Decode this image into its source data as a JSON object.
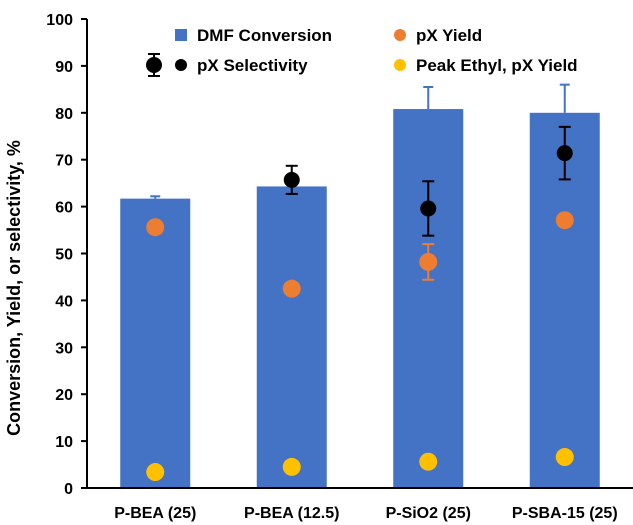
{
  "chart_data": {
    "type": "bar",
    "title": "",
    "xlabel": "",
    "ylabel": "Conversion, Yield, or selectivity, %",
    "ylim": [
      0,
      100
    ],
    "yticks": [
      0,
      10,
      20,
      30,
      40,
      50,
      60,
      70,
      80,
      90,
      100
    ],
    "grid": false,
    "legend_position": "top",
    "categories": [
      "P-BEA (25)",
      "P-BEA (12.5)",
      "P-SiO2 (25)",
      "P-SBA-15 (25)"
    ],
    "series": [
      {
        "name": "DMF Conversion",
        "kind": "bar",
        "color": "#4472C4",
        "values": [
          61.7,
          64.3,
          80.8,
          80.0
        ],
        "error": [
          0.5,
          0,
          4.7,
          6.0
        ]
      },
      {
        "name": "pX Yield",
        "kind": "point",
        "color": "#ED7D31",
        "values": [
          55.6,
          42.5,
          48.2,
          57.1
        ],
        "error": [
          0,
          0,
          3.8,
          0
        ]
      },
      {
        "name": "pX Selectivity",
        "kind": "point",
        "color": "#000000",
        "values": [
          null,
          65.7,
          59.6,
          71.4
        ],
        "error": [
          0,
          3.0,
          5.8,
          5.6
        ]
      },
      {
        "name": "Peak Ethyl, pX Yield",
        "kind": "point",
        "color": "#FFC000",
        "values": [
          3.4,
          4.5,
          5.6,
          6.6
        ],
        "error": [
          0,
          0,
          0,
          0
        ]
      }
    ]
  }
}
